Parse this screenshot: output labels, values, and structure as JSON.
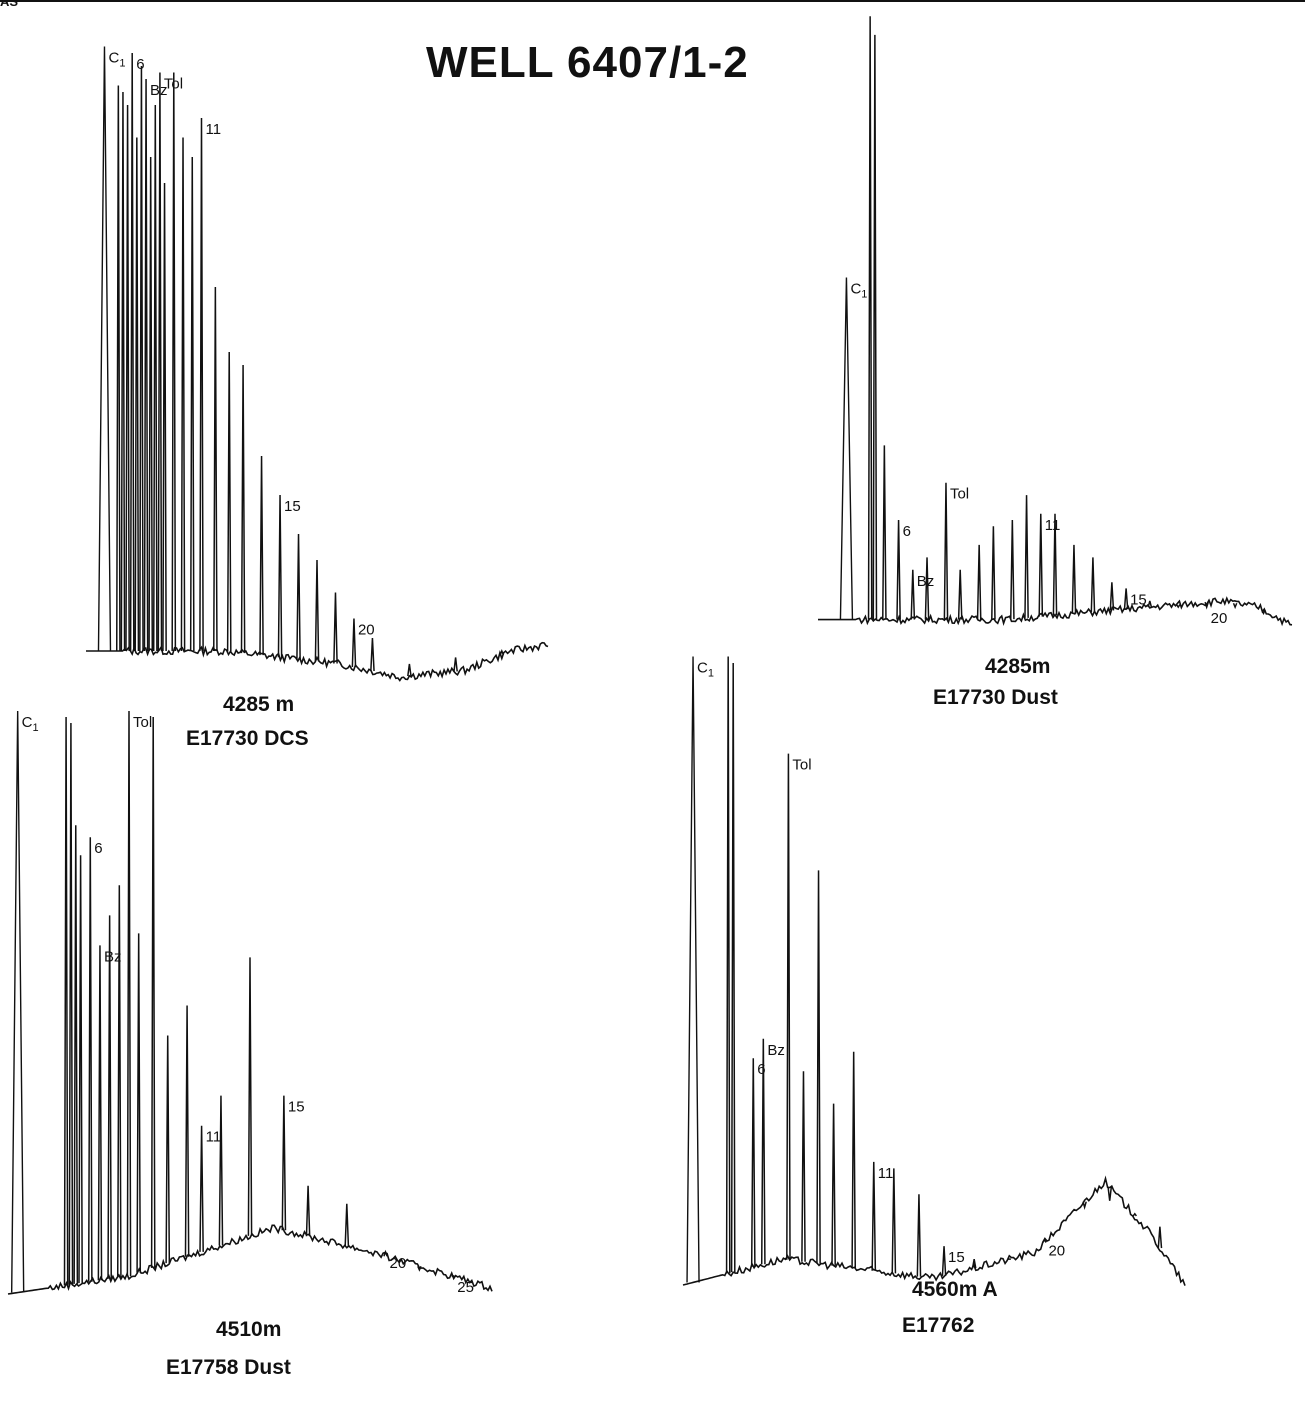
{
  "header": {
    "corner_text": "AS",
    "title": "WELL 6407/1-2"
  },
  "colors": {
    "ink": "#111111",
    "paper": "#ffffff"
  },
  "chart_data": [
    {
      "type": "line",
      "subtype": "gas-chromatogram",
      "caption_depth": "4285 m",
      "caption_sample": "E17730 DCS",
      "peak_labels": [
        "C1",
        "6",
        "Bz",
        "Tol",
        "11",
        "15",
        "20"
      ],
      "peaks": [
        {
          "x": 0.04,
          "h": 0.99,
          "label": "C1"
        },
        {
          "x": 0.07,
          "h": 0.93
        },
        {
          "x": 0.08,
          "h": 0.92
        },
        {
          "x": 0.09,
          "h": 0.9
        },
        {
          "x": 0.1,
          "h": 0.98,
          "label": "6"
        },
        {
          "x": 0.11,
          "h": 0.85
        },
        {
          "x": 0.12,
          "h": 0.96
        },
        {
          "x": 0.13,
          "h": 0.94,
          "label": "Bz"
        },
        {
          "x": 0.14,
          "h": 0.82
        },
        {
          "x": 0.15,
          "h": 0.9
        },
        {
          "x": 0.16,
          "h": 0.95,
          "label": "Tol"
        },
        {
          "x": 0.17,
          "h": 0.78
        },
        {
          "x": 0.19,
          "h": 0.95
        },
        {
          "x": 0.21,
          "h": 0.85
        },
        {
          "x": 0.23,
          "h": 0.82
        },
        {
          "x": 0.25,
          "h": 0.88,
          "label": "11"
        },
        {
          "x": 0.28,
          "h": 0.62
        },
        {
          "x": 0.31,
          "h": 0.52
        },
        {
          "x": 0.34,
          "h": 0.5
        },
        {
          "x": 0.38,
          "h": 0.36
        },
        {
          "x": 0.42,
          "h": 0.3,
          "label": "15"
        },
        {
          "x": 0.46,
          "h": 0.24
        },
        {
          "x": 0.5,
          "h": 0.2
        },
        {
          "x": 0.54,
          "h": 0.15
        },
        {
          "x": 0.58,
          "h": 0.11,
          "label": "20"
        },
        {
          "x": 0.62,
          "h": 0.08
        },
        {
          "x": 0.7,
          "h": 0.04
        },
        {
          "x": 0.8,
          "h": 0.05
        },
        {
          "x": 0.9,
          "h": 0.06
        }
      ],
      "baseline": [
        [
          0,
          0.06
        ],
        [
          0.3,
          0.06
        ],
        [
          0.55,
          0.04
        ],
        [
          0.68,
          0.02
        ],
        [
          0.82,
          0.03
        ],
        [
          0.92,
          0.06
        ],
        [
          1,
          0.07
        ]
      ]
    },
    {
      "type": "line",
      "subtype": "gas-chromatogram",
      "caption_depth": "4285m",
      "caption_sample": "E17730 Dust",
      "peak_labels": [
        "C1",
        "6",
        "Bz",
        "Tol",
        "11",
        "15",
        "20"
      ],
      "peaks": [
        {
          "x": 0.06,
          "h": 0.57,
          "label": "C1"
        },
        {
          "x": 0.11,
          "h": 0.99
        },
        {
          "x": 0.12,
          "h": 0.96
        },
        {
          "x": 0.14,
          "h": 0.3
        },
        {
          "x": 0.17,
          "h": 0.18,
          "label": "6"
        },
        {
          "x": 0.2,
          "h": 0.1,
          "label": "Bz"
        },
        {
          "x": 0.23,
          "h": 0.12
        },
        {
          "x": 0.27,
          "h": 0.24,
          "label": "Tol"
        },
        {
          "x": 0.3,
          "h": 0.1
        },
        {
          "x": 0.34,
          "h": 0.14
        },
        {
          "x": 0.37,
          "h": 0.17
        },
        {
          "x": 0.41,
          "h": 0.18
        },
        {
          "x": 0.44,
          "h": 0.22
        },
        {
          "x": 0.47,
          "h": 0.19,
          "label": "11"
        },
        {
          "x": 0.5,
          "h": 0.19
        },
        {
          "x": 0.54,
          "h": 0.14
        },
        {
          "x": 0.58,
          "h": 0.12
        },
        {
          "x": 0.62,
          "h": 0.08
        },
        {
          "x": 0.65,
          "h": 0.07,
          "label": "15"
        },
        {
          "x": 0.7,
          "h": 0.05
        },
        {
          "x": 0.76,
          "h": 0.04
        },
        {
          "x": 0.82,
          "h": 0.04,
          "label": "20"
        },
        {
          "x": 0.88,
          "h": 0.04
        },
        {
          "x": 0.94,
          "h": 0.03
        }
      ],
      "baseline": [
        [
          0,
          0.02
        ],
        [
          0.4,
          0.02
        ],
        [
          0.7,
          0.04
        ],
        [
          0.85,
          0.05
        ],
        [
          0.93,
          0.04
        ],
        [
          1,
          0.01
        ]
      ]
    },
    {
      "type": "line",
      "subtype": "gas-chromatogram",
      "caption_depth": "4510m",
      "caption_sample": "E17758 Dust",
      "peak_labels": [
        "C1",
        "Tol",
        "6",
        "Bz",
        "11",
        "15",
        "20",
        "25"
      ],
      "peaks": [
        {
          "x": 0.02,
          "h": 0.99,
          "label": "C1"
        },
        {
          "x": 0.12,
          "h": 0.98
        },
        {
          "x": 0.13,
          "h": 0.97
        },
        {
          "x": 0.14,
          "h": 0.8
        },
        {
          "x": 0.15,
          "h": 0.75
        },
        {
          "x": 0.17,
          "h": 0.78,
          "label": "6"
        },
        {
          "x": 0.19,
          "h": 0.6,
          "label": "Bz"
        },
        {
          "x": 0.21,
          "h": 0.65
        },
        {
          "x": 0.23,
          "h": 0.7
        },
        {
          "x": 0.25,
          "h": 0.99,
          "label": "Tol"
        },
        {
          "x": 0.27,
          "h": 0.62
        },
        {
          "x": 0.3,
          "h": 0.98
        },
        {
          "x": 0.33,
          "h": 0.45
        },
        {
          "x": 0.37,
          "h": 0.5
        },
        {
          "x": 0.4,
          "h": 0.3,
          "label": "11"
        },
        {
          "x": 0.44,
          "h": 0.35
        },
        {
          "x": 0.5,
          "h": 0.58
        },
        {
          "x": 0.57,
          "h": 0.35,
          "label": "15"
        },
        {
          "x": 0.62,
          "h": 0.2
        },
        {
          "x": 0.7,
          "h": 0.17
        },
        {
          "x": 0.78,
          "h": 0.09,
          "label": "20"
        },
        {
          "x": 0.85,
          "h": 0.06
        },
        {
          "x": 0.92,
          "h": 0.05,
          "label": "25"
        }
      ],
      "baseline": [
        [
          0,
          0.02
        ],
        [
          0.25,
          0.05
        ],
        [
          0.55,
          0.13
        ],
        [
          0.75,
          0.09
        ],
        [
          1,
          0.03
        ]
      ]
    },
    {
      "type": "line",
      "subtype": "gas-chromatogram",
      "caption_depth": "4560m A",
      "caption_sample": "E17762",
      "peak_labels": [
        "C1",
        "Tol",
        "Bz",
        "6",
        "11",
        "15",
        "20"
      ],
      "peaks": [
        {
          "x": 0.02,
          "h": 0.99,
          "label": "C1"
        },
        {
          "x": 0.09,
          "h": 0.99
        },
        {
          "x": 0.1,
          "h": 0.98
        },
        {
          "x": 0.14,
          "h": 0.37,
          "label": "6"
        },
        {
          "x": 0.16,
          "h": 0.4,
          "label": "Bz"
        },
        {
          "x": 0.21,
          "h": 0.84,
          "label": "Tol"
        },
        {
          "x": 0.24,
          "h": 0.35
        },
        {
          "x": 0.27,
          "h": 0.66
        },
        {
          "x": 0.3,
          "h": 0.3
        },
        {
          "x": 0.34,
          "h": 0.38
        },
        {
          "x": 0.38,
          "h": 0.21,
          "label": "11"
        },
        {
          "x": 0.42,
          "h": 0.2
        },
        {
          "x": 0.47,
          "h": 0.16
        },
        {
          "x": 0.52,
          "h": 0.08,
          "label": "15"
        },
        {
          "x": 0.58,
          "h": 0.06
        },
        {
          "x": 0.65,
          "h": 0.06
        },
        {
          "x": 0.72,
          "h": 0.09,
          "label": "20"
        },
        {
          "x": 0.8,
          "h": 0.14
        },
        {
          "x": 0.85,
          "h": 0.15
        },
        {
          "x": 0.9,
          "h": 0.13
        },
        {
          "x": 0.95,
          "h": 0.11
        }
      ],
      "baseline": [
        [
          0,
          0.02
        ],
        [
          0.2,
          0.06
        ],
        [
          0.5,
          0.03
        ],
        [
          0.7,
          0.07
        ],
        [
          0.84,
          0.18
        ],
        [
          0.93,
          0.1
        ],
        [
          1,
          0.02
        ]
      ]
    }
  ]
}
